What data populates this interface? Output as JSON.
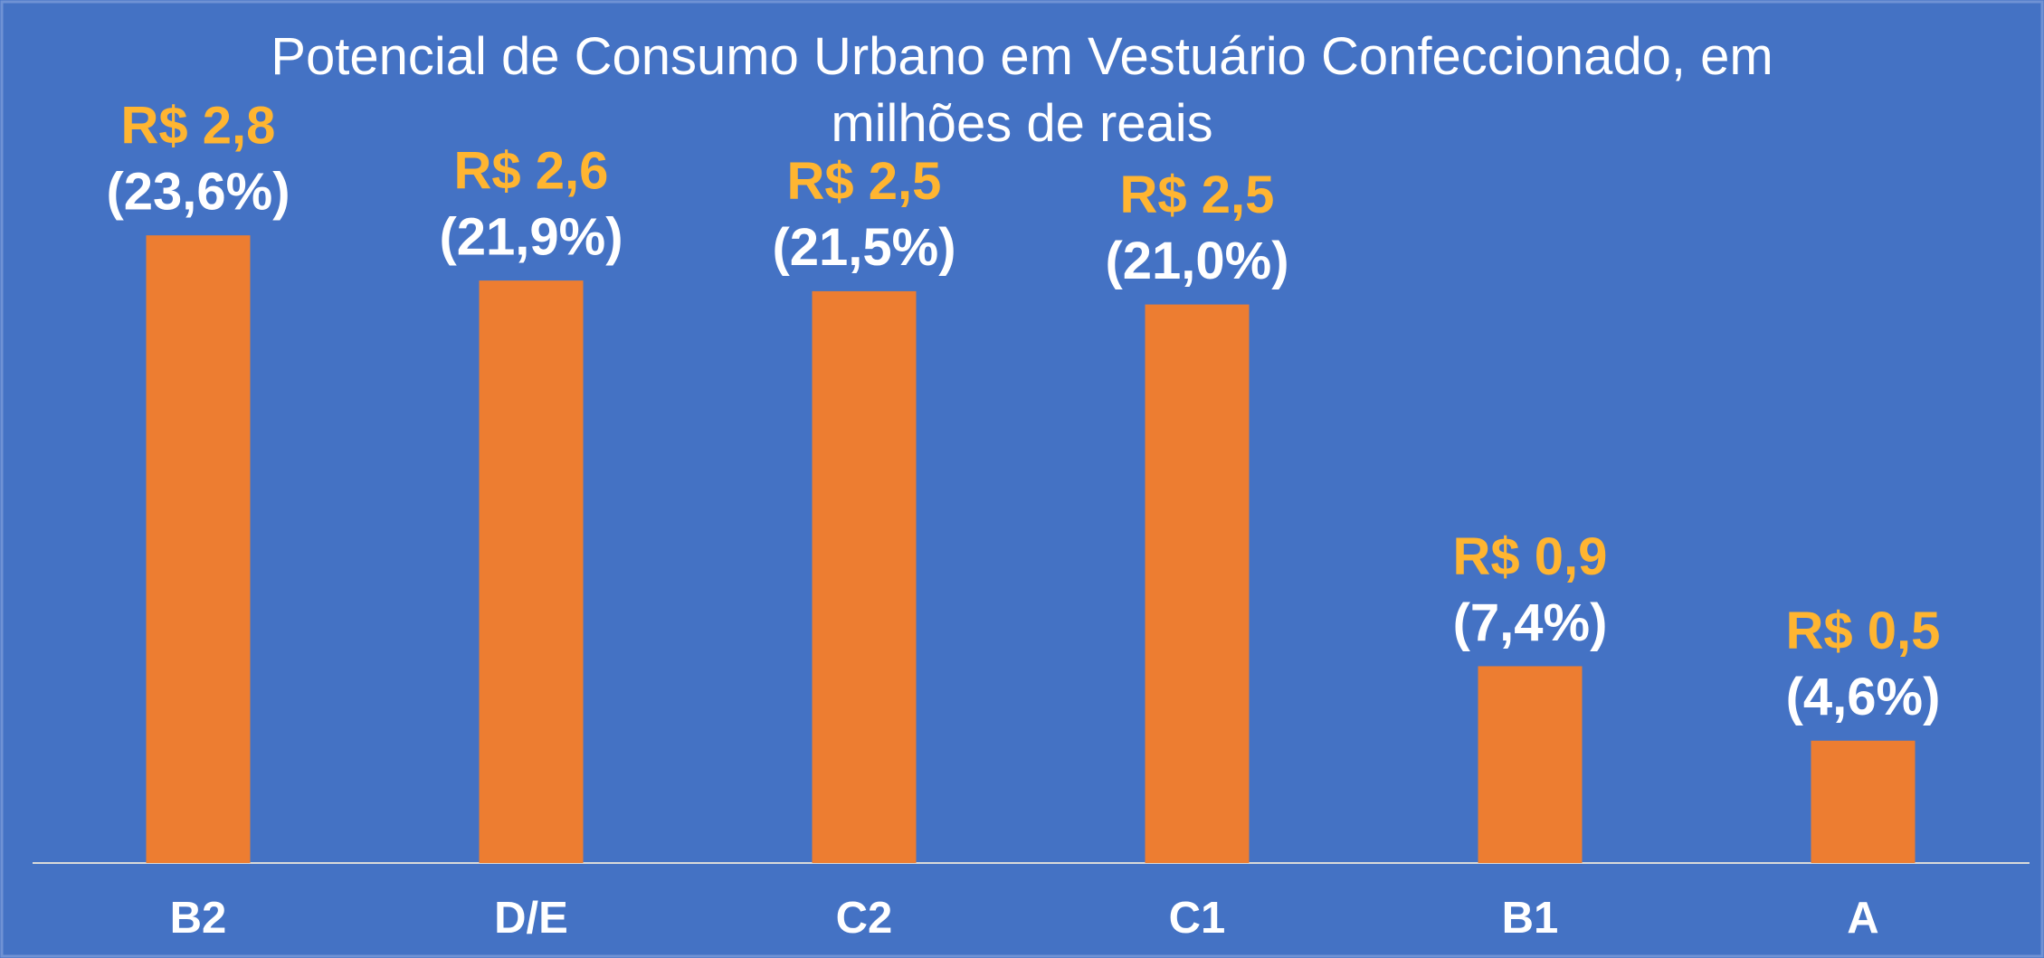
{
  "chart_data": {
    "type": "bar",
    "title": "Potencial de Consumo Urbano em Vestuário Confeccionado, em milhões de reais",
    "categories": [
      "B2",
      "D/E",
      "C2",
      "C1",
      "B1",
      "A"
    ],
    "values": [
      23.6,
      21.9,
      21.5,
      21.0,
      7.4,
      4.6
    ],
    "value_labels": [
      "(23,6%)",
      "(21,9%)",
      "(21,5%)",
      "(21,0%)",
      "(7,4%)",
      "(4,6%)"
    ],
    "amount_labels": [
      "R$ 2,8",
      "R$ 2,6",
      "R$ 2,5",
      "R$ 2,5",
      "R$ 0,9",
      "R$ 0,5"
    ],
    "color": "#ed7d31",
    "ylim": [
      0,
      25
    ]
  }
}
